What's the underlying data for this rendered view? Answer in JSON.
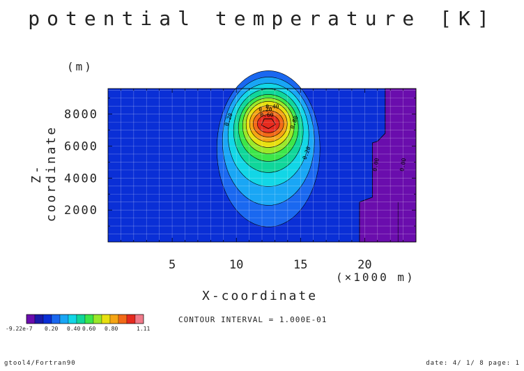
{
  "title": "potential temperature [K]",
  "footer": {
    "left": "gtool4/Fortran90",
    "right": "date: 4/ 1/ 8 page: 1"
  },
  "contour_interval": "CONTOUR INTERVAL = 1.000E-01",
  "colorbar": {
    "colors": [
      "#6a0dad",
      "#1a1aa8",
      "#0a2fd6",
      "#1a68f0",
      "#19a6f5",
      "#12d6e6",
      "#10d69a",
      "#3ce64a",
      "#9ae82a",
      "#e8e010",
      "#f5a515",
      "#f26a18",
      "#e52a1e",
      "#f07a8a"
    ],
    "labels": [
      "-9.22e-7",
      "0.20",
      "0.40",
      "0.60",
      "0.80",
      "1.11"
    ]
  },
  "chart_data": {
    "type": "heatmap",
    "title": "potential temperature [K]",
    "xlabel": "X-coordinate",
    "xunit": "(×1000 m)",
    "ylabel": "Z-coordinate",
    "yunit": "(m)",
    "xlim": [
      0,
      24
    ],
    "ylim": [
      0,
      9600
    ],
    "xticks": [
      5,
      10,
      15,
      20
    ],
    "yticks": [
      2000,
      4000,
      6000,
      8000
    ],
    "grid": true,
    "contour_levels": [
      0.1,
      0.2,
      0.3,
      0.4,
      0.5,
      0.6,
      0.7,
      0.8,
      0.9,
      1.0,
      1.1
    ],
    "contour_labels": [
      "0.20",
      "0.40",
      "0.60",
      "0.80",
      "0.20",
      "0.20",
      "0.00",
      "0.00"
    ],
    "bubble": {
      "center_x": 12.5,
      "center_z": 7400,
      "peak": 1.11
    },
    "right_band": {
      "value": 0.0,
      "x_from": 20,
      "x_to": 24
    }
  }
}
